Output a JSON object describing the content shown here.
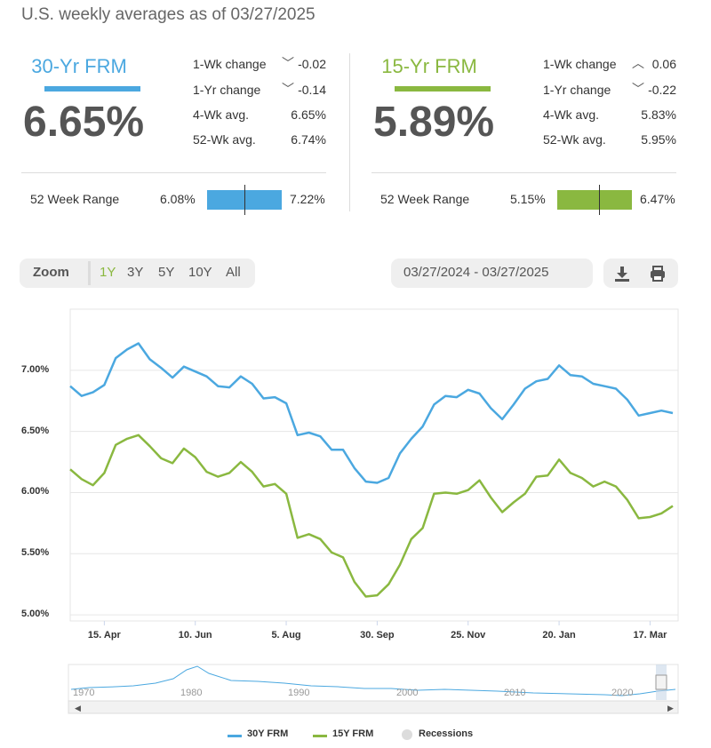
{
  "header": "U.S. weekly averages as of 03/27/2025",
  "colors": {
    "blue": "#4ba8e0",
    "green": "#8ab840",
    "bar_blue": "#4ba8e0",
    "bar_green": "#8ab840"
  },
  "panels": [
    {
      "name": "30-Yr FRM",
      "rate": "6.65%",
      "stats": [
        {
          "label": "1-Wk change",
          "arrow": "down-arrow",
          "value": "-0.02"
        },
        {
          "label": "1-Yr change",
          "arrow": "down-arrow",
          "value": "-0.14"
        },
        {
          "label": "4-Wk avg.",
          "value": "6.65%"
        },
        {
          "label": "52-Wk avg.",
          "value": "6.74%"
        }
      ],
      "range_label": "52 Week Range",
      "range_min": "6.08%",
      "range_max": "7.22%",
      "range_current": 6.65
    },
    {
      "name": "15-Yr FRM",
      "rate": "5.89%",
      "stats": [
        {
          "label": "1-Wk change",
          "arrow": "up-arrow",
          "value": "0.06"
        },
        {
          "label": "1-Yr change",
          "arrow": "down-arrow",
          "value": "-0.22"
        },
        {
          "label": "4-Wk avg.",
          "value": "5.83%"
        },
        {
          "label": "52-Wk avg.",
          "value": "5.95%"
        }
      ],
      "range_label": "52 Week Range",
      "range_min": "5.15%",
      "range_max": "6.47%",
      "range_current": 5.89
    }
  ],
  "toolbar": {
    "zoom_label": "Zoom",
    "zoom_options": [
      "1Y",
      "3Y",
      "5Y",
      "10Y",
      "All"
    ],
    "zoom_selected": "1Y",
    "date_range": "03/27/2024 - 03/27/2025",
    "icons": [
      "download-icon",
      "print-icon"
    ]
  },
  "chart_data": {
    "type": "line",
    "ylim": [
      4.95,
      7.5
    ],
    "yticks": [
      "5.00%",
      "5.50%",
      "6.00%",
      "6.50%",
      "7.00%"
    ],
    "ytick_values": [
      5.0,
      5.5,
      6.0,
      6.5,
      7.0
    ],
    "xticks": [
      "15. Apr",
      "10. Jun",
      "5. Aug",
      "30. Sep",
      "25. Nov",
      "20. Jan",
      "17. Mar"
    ],
    "xtick_index": [
      3,
      11,
      19,
      27,
      35,
      43,
      51
    ],
    "series": [
      {
        "name": "30Y FRM",
        "color": "#4ba8e0",
        "values": [
          6.87,
          6.79,
          6.82,
          6.88,
          7.1,
          7.17,
          7.22,
          7.09,
          7.02,
          6.94,
          7.03,
          6.99,
          6.95,
          6.87,
          6.86,
          6.95,
          6.89,
          6.77,
          6.78,
          6.73,
          6.47,
          6.49,
          6.46,
          6.35,
          6.35,
          6.2,
          6.09,
          6.08,
          6.12,
          6.32,
          6.44,
          6.54,
          6.72,
          6.79,
          6.78,
          6.84,
          6.81,
          6.69,
          6.6,
          6.72,
          6.85,
          6.91,
          6.93,
          7.04,
          6.96,
          6.95,
          6.89,
          6.87,
          6.85,
          6.76,
          6.63,
          6.65,
          6.67,
          6.65
        ]
      },
      {
        "name": "15Y FRM",
        "color": "#8ab840",
        "values": [
          6.19,
          6.11,
          6.06,
          6.16,
          6.39,
          6.44,
          6.47,
          6.38,
          6.28,
          6.24,
          6.36,
          6.29,
          6.17,
          6.13,
          6.16,
          6.25,
          6.17,
          6.05,
          6.07,
          5.99,
          5.63,
          5.66,
          5.62,
          5.51,
          5.47,
          5.27,
          5.15,
          5.16,
          5.25,
          5.41,
          5.62,
          5.71,
          5.99,
          6.0,
          5.99,
          6.02,
          6.1,
          5.96,
          5.84,
          5.92,
          5.99,
          6.13,
          6.14,
          6.27,
          6.16,
          6.12,
          6.05,
          6.09,
          6.05,
          5.94,
          5.79,
          5.8,
          5.83,
          5.89
        ]
      }
    ],
    "legend": [
      {
        "label": "30Y FRM",
        "color": "#4ba8e0",
        "kind": "line"
      },
      {
        "label": "15Y FRM",
        "color": "#8ab840",
        "kind": "line"
      },
      {
        "label": "Recessions",
        "color": "#dcdcdc",
        "kind": "dot"
      }
    ],
    "legend_position": "bottom-center",
    "grid": true
  },
  "navigator": {
    "years": [
      "1970",
      "1980",
      "1990",
      "2000",
      "2010",
      "2020"
    ]
  }
}
